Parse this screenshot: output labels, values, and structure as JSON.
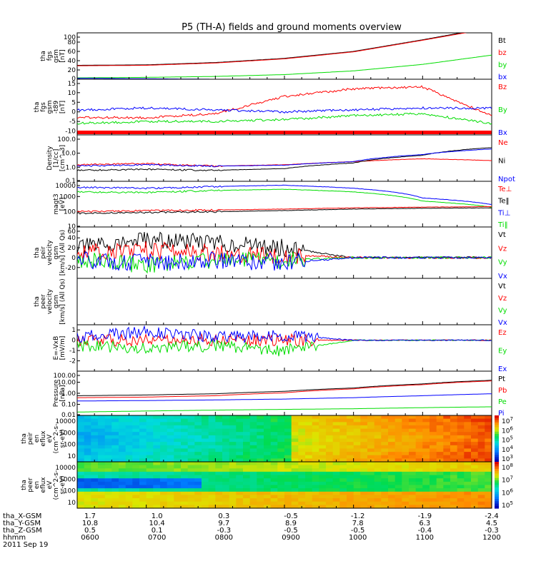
{
  "title": "P5 (TH-A) fields and ground moments overview",
  "colors": {
    "black": "#000000",
    "red": "#ff0000",
    "green": "#00dd00",
    "blue": "#0000ff"
  },
  "footer": {
    "rows": [
      {
        "label": "tha_X-GSM",
        "values": [
          "1.7",
          "1.0",
          "0.3",
          "-0.5",
          "-1.2",
          "-1.9",
          "-2.4"
        ]
      },
      {
        "label": "tha_Y-GSM",
        "values": [
          "10.8",
          "10.4",
          "9.7",
          "8.9",
          "7.8",
          "6.3",
          "4.5"
        ]
      },
      {
        "label": "tha_Z-GSM",
        "values": [
          "0.5",
          "0.1",
          "-0.3",
          "-0.5",
          "-0.5",
          "-0.4",
          "-0.3"
        ]
      },
      {
        "label": "hhmm",
        "values": [
          "0600",
          "0700",
          "0800",
          "0900",
          "1000",
          "1100",
          "1200"
        ]
      }
    ],
    "date": "2011 Sep 19"
  },
  "chart_data": [
    {
      "type": "line",
      "ylabel": [
        "tha",
        "fgs",
        "gsm",
        "[nT]"
      ],
      "ylim": [
        0,
        100
      ],
      "ticks": [
        "100",
        "80",
        "60",
        "40",
        "20",
        "0"
      ],
      "legend": [
        {
          "name": "Bt",
          "color": "#000000"
        },
        {
          "name": "bz",
          "color": "#ff0000"
        },
        {
          "name": "by",
          "color": "#00dd00"
        },
        {
          "name": "bx",
          "color": "#0000ff"
        }
      ],
      "x": [
        "0600",
        "0700",
        "0800",
        "0900",
        "1000",
        "1100",
        "1200"
      ],
      "series": [
        {
          "name": "Bt",
          "color": "#000000",
          "values": [
            30,
            31,
            36,
            45,
            60,
            85,
            112
          ]
        },
        {
          "name": "bz",
          "color": "#ff0000",
          "values": [
            29,
            30,
            35,
            44,
            59,
            84,
            110
          ]
        },
        {
          "name": "by",
          "color": "#00dd00",
          "values": [
            3,
            4,
            6,
            10,
            18,
            32,
            52
          ]
        },
        {
          "name": "bx",
          "color": "#0000ff",
          "values": [
            2,
            1,
            0,
            0,
            0,
            -1,
            -2
          ]
        }
      ]
    },
    {
      "type": "line",
      "ylabel": [
        "tha",
        "fgs",
        "gsm",
        "-t89",
        "[nT]"
      ],
      "ylim": [
        -12,
        17
      ],
      "ticks": [
        "15",
        "10",
        "5",
        "0",
        "-5",
        "-10"
      ],
      "legend": [
        {
          "name": "Bz",
          "color": "#ff0000"
        },
        {
          "name": "By",
          "color": "#00dd00"
        },
        {
          "name": "Bx",
          "color": "#0000ff"
        }
      ],
      "x": [
        "0600",
        "0700",
        "0800",
        "0900",
        "1000",
        "1100",
        "1200"
      ],
      "series": [
        {
          "name": "Bz",
          "color": "#ff0000",
          "values": [
            -3,
            -3,
            -1,
            8,
            12,
            13,
            -2
          ]
        },
        {
          "name": "By",
          "color": "#00dd00",
          "values": [
            -6,
            -5,
            -5,
            -4,
            -2,
            -1,
            -6
          ]
        },
        {
          "name": "Bx",
          "color": "#0000ff",
          "values": [
            1,
            2,
            1,
            0,
            1,
            2,
            2
          ]
        }
      ]
    },
    {
      "type": "line",
      "ylabel": [
        "Density",
        "[1/cc]",
        "[cm^-3]"
      ],
      "scale": "log",
      "ylim": [
        0.1,
        200
      ],
      "ticks": [
        "100.0",
        "10.0",
        "1.0",
        "0.1"
      ],
      "legend": [
        {
          "name": "Ne",
          "color": "#ff0000"
        },
        {
          "name": "Ni",
          "color": "#000000"
        },
        {
          "name": "Npot",
          "color": "#0000ff"
        }
      ],
      "x": [
        "0600",
        "0700",
        "0800",
        "0900",
        "1000",
        "1100",
        "1200"
      ],
      "series": [
        {
          "name": "Ne",
          "color": "#ff0000",
          "values": [
            1.5,
            1.8,
            1.2,
            1.5,
            2.5,
            4,
            3
          ]
        },
        {
          "name": "Ni",
          "color": "#000000",
          "values": [
            0.6,
            0.7,
            0.6,
            0.8,
            2,
            7,
            25
          ]
        },
        {
          "name": "Npot",
          "color": "#0000ff",
          "values": [
            1.2,
            1.5,
            1.2,
            1.4,
            2.5,
            8,
            20
          ]
        }
      ]
    },
    {
      "type": "line",
      "ylabel": [
        "magt3",
        "[eV]"
      ],
      "scale": "log",
      "ylim": [
        10,
        10000
      ],
      "ticks": [
        "10000",
        "1000",
        "100",
        "10"
      ],
      "legend": [
        {
          "name": "Te⊥",
          "color": "#ff0000"
        },
        {
          "name": "Te‖",
          "color": "#000000"
        },
        {
          "name": "Ti⊥",
          "color": "#0000ff"
        },
        {
          "name": "Ti‖",
          "color": "#00dd00"
        }
      ],
      "x": [
        "0600",
        "0700",
        "0800",
        "0900",
        "1000",
        "1100",
        "1200"
      ],
      "series": [
        {
          "name": "Ti⊥",
          "color": "#0000ff",
          "values": [
            4000,
            3500,
            4500,
            5500,
            3500,
            800,
            300
          ]
        },
        {
          "name": "Ti‖",
          "color": "#00dd00",
          "values": [
            2000,
            1800,
            2500,
            3000,
            2000,
            500,
            200
          ]
        },
        {
          "name": "Te⊥",
          "color": "#ff0000",
          "values": [
            100,
            120,
            130,
            150,
            180,
            200,
            220
          ]
        },
        {
          "name": "Te‖",
          "color": "#000000",
          "values": [
            80,
            90,
            100,
            120,
            150,
            170,
            180
          ]
        }
      ]
    },
    {
      "type": "line",
      "ylabel": [
        "tha",
        "peir",
        "velocity",
        "gsm",
        "[km/s] (All Qs)"
      ],
      "ylim": [
        -42,
        62
      ],
      "ticks": [
        "60",
        "40",
        "20",
        "0",
        "-20"
      ],
      "legend": [
        {
          "name": "Vt",
          "color": "#000000"
        },
        {
          "name": "Vz",
          "color": "#ff0000"
        },
        {
          "name": "Vy",
          "color": "#00dd00"
        },
        {
          "name": "Vx",
          "color": "#0000ff"
        }
      ],
      "x": [
        "0600",
        "0700",
        "0800",
        "0900",
        "1000",
        "1100",
        "1200"
      ],
      "series": [
        {
          "name": "Vt",
          "color": "#000000",
          "values": [
            20,
            35,
            30,
            20,
            0,
            0,
            0
          ]
        },
        {
          "name": "Vz",
          "color": "#ff0000",
          "values": [
            10,
            15,
            10,
            5,
            0,
            0,
            0
          ]
        },
        {
          "name": "Vy",
          "color": "#00dd00",
          "values": [
            -5,
            -15,
            -5,
            -5,
            0,
            0,
            0
          ]
        },
        {
          "name": "Vx",
          "color": "#0000ff",
          "values": [
            -5,
            -10,
            -5,
            -10,
            0,
            0,
            0
          ]
        }
      ]
    },
    {
      "type": "line",
      "ylabel": [
        "tha",
        "peer",
        "velocity",
        "gsm",
        "[km/s] (All Qs)"
      ],
      "legend": [
        {
          "name": "Vt",
          "color": "#000000"
        },
        {
          "name": "Vz",
          "color": "#ff0000"
        },
        {
          "name": "Vy",
          "color": "#00dd00"
        },
        {
          "name": "Vx",
          "color": "#0000ff"
        }
      ],
      "ticks": [],
      "series": []
    },
    {
      "type": "line",
      "ylabel": [
        "E=-VxB",
        "[mV/m]"
      ],
      "ylim": [
        -3,
        1.5
      ],
      "ticks": [
        "1",
        "0",
        "-1",
        "-2"
      ],
      "legend": [
        {
          "name": "Ez",
          "color": "#ff0000"
        },
        {
          "name": "Ey",
          "color": "#00dd00"
        },
        {
          "name": "Ex",
          "color": "#0000ff"
        }
      ],
      "x": [
        "0600",
        "0700",
        "0800",
        "0900",
        "1000",
        "1100",
        "1200"
      ],
      "series": [
        {
          "name": "Ez",
          "color": "#ff0000",
          "values": [
            0,
            0,
            0,
            0,
            0,
            0,
            0
          ]
        },
        {
          "name": "Ey",
          "color": "#00dd00",
          "values": [
            -0.5,
            -0.8,
            -0.5,
            -1,
            0,
            0,
            0
          ]
        },
        {
          "name": "Ex",
          "color": "#0000ff",
          "values": [
            0.3,
            0.8,
            0.3,
            0.5,
            0,
            0,
            0
          ]
        }
      ]
    },
    {
      "type": "line",
      "ylabel": [
        "Pressure",
        "[nPa]"
      ],
      "scale": "log",
      "ylim": [
        0.01,
        100
      ],
      "ticks": [
        "100.00",
        "10.00",
        "1.00",
        "0.10",
        "0.01"
      ],
      "legend": [
        {
          "name": "Pt",
          "color": "#000000"
        },
        {
          "name": "Pb",
          "color": "#ff0000"
        },
        {
          "name": "Pe",
          "color": "#00dd00"
        },
        {
          "name": "Pi",
          "color": "#0000ff"
        }
      ],
      "x": [
        "0600",
        "0700",
        "0800",
        "0900",
        "1000",
        "1100",
        "1200"
      ],
      "series": [
        {
          "name": "Pt",
          "color": "#000000",
          "values": [
            0.6,
            0.7,
            0.9,
            1.5,
            3,
            7,
            15
          ]
        },
        {
          "name": "Pb",
          "color": "#ff0000",
          "values": [
            0.4,
            0.45,
            0.6,
            1.1,
            2.5,
            6,
            13
          ]
        },
        {
          "name": "Pe",
          "color": "#00dd00",
          "values": [
            0.02,
            0.025,
            0.03,
            0.035,
            0.04,
            0.05,
            0.06
          ]
        },
        {
          "name": "Pi",
          "color": "#0000ff",
          "values": [
            0.2,
            0.22,
            0.25,
            0.3,
            0.4,
            0.6,
            0.9
          ]
        }
      ]
    },
    {
      "type": "heatmap",
      "ylabel": [
        "tha",
        "peir",
        "en",
        "eflux",
        "eV",
        "(cm^2-s-",
        "sr-eV)"
      ],
      "ticks": [
        "10000",
        "1000",
        "100",
        "10"
      ],
      "colorbar": [
        "10^7",
        "10^6",
        "10^5",
        "10^4",
        "10^3"
      ]
    },
    {
      "type": "heatmap",
      "ylabel": [
        "tha",
        "peer",
        "en",
        "eflux",
        "eV",
        "(cm^2-s-",
        "sr-eV)"
      ],
      "ticks": [
        "10000",
        "1000",
        "100",
        "10"
      ],
      "colorbar": [
        "10^8",
        "10^7",
        "10^6",
        "10^5"
      ]
    }
  ]
}
